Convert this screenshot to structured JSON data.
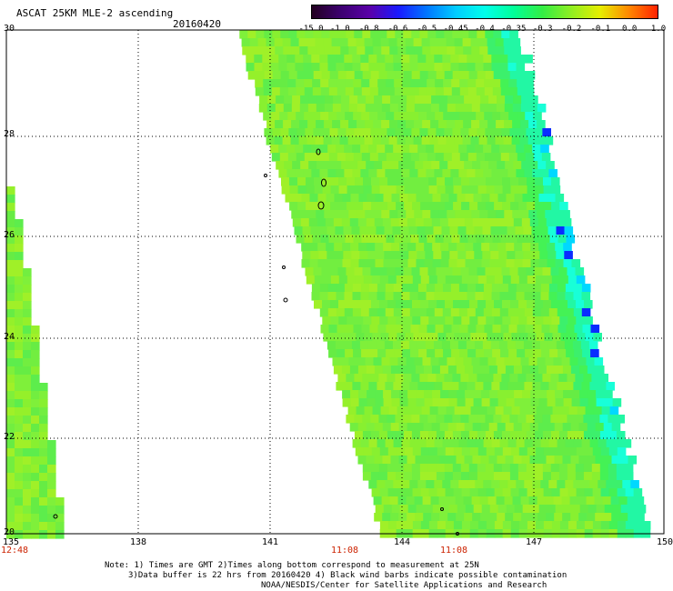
{
  "header": {
    "title": "ASCAT 25KM MLE-2 ascending",
    "date": "20160420"
  },
  "colorbar": {
    "ticks": [
      "-15.0",
      "-1.0",
      "-0.8",
      "-0.6",
      "-0.5",
      "-0.45",
      "-0.4",
      "-0.35",
      "-0.3",
      "-0.2",
      "-0.1",
      "0.0",
      "1.0"
    ],
    "colors": [
      "#230020",
      "#3c0070",
      "#5a00a8",
      "#1a1aff",
      "#0077ff",
      "#00ccff",
      "#00ffea",
      "#00ff99",
      "#33ee44",
      "#8fef22",
      "#e6ee00",
      "#ff8800",
      "#ff2200"
    ]
  },
  "axes": {
    "y_ticks": [
      "30",
      "28",
      "26",
      "24",
      "22",
      "20"
    ],
    "x_ticks": [
      "135",
      "138",
      "141",
      "144",
      "147",
      "150"
    ],
    "time_labels": [
      "12:48",
      "11:08",
      "11:08"
    ]
  },
  "notes": {
    "line1": "Note: 1) Times are GMT 2)Times along bottom correspond to measurement at 25N",
    "line2": "3)Data buffer is 22 hrs from 20160420 4) Black wind barbs indicate possible contamination",
    "line3": "NOAA/NESDIS/Center for Satellite Applications and Research"
  }
}
